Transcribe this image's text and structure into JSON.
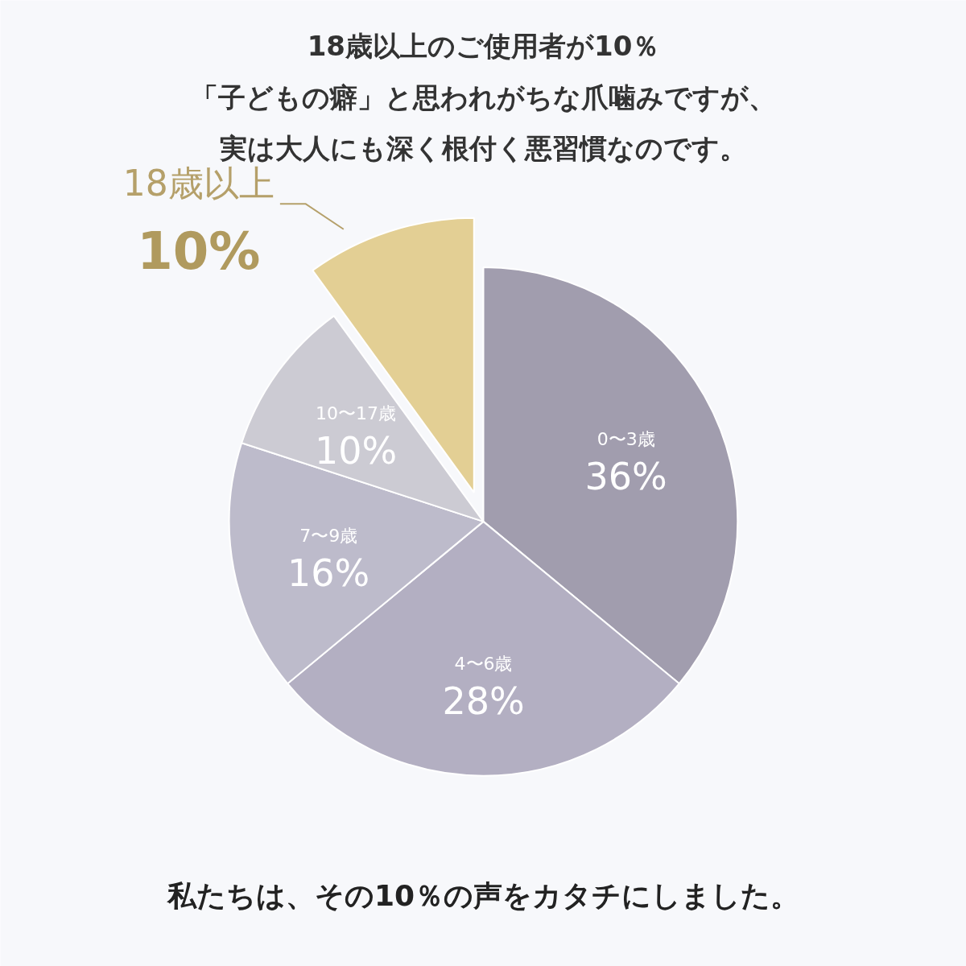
{
  "chart_data": {
    "type": "pie",
    "title": "18歳以上のご使用者が10％",
    "subtitle": "「子どもの癖」と思われがちな爪噛みですが、",
    "categories": [
      "0〜3歳",
      "4〜6歳",
      "7〜9歳",
      "10〜17歳",
      "18歳以上"
    ],
    "values": [
      36,
      28,
      16,
      10,
      10
    ],
    "value_labels": [
      "36%",
      "28%",
      "16%",
      "10%",
      "10%"
    ],
    "colors": [
      "#a19dae",
      "#b3afc2",
      "#bdbbcb",
      "#cccbd3",
      "#e3cf94"
    ],
    "annotations": [
      "実は大人にも深く根付く悪習慣なのです。",
      "私たちは、その10％の声をカタチにしました。"
    ]
  }
}
